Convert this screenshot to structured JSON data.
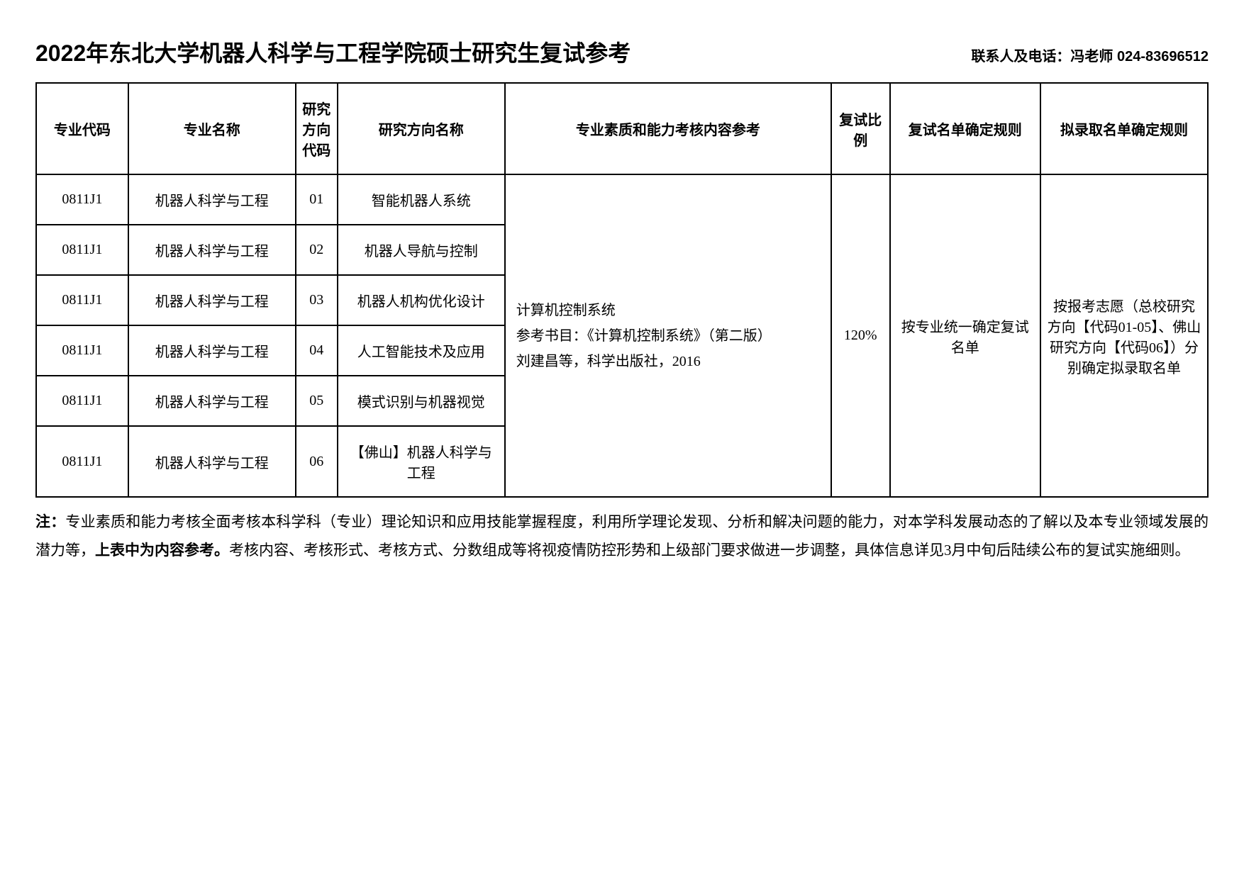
{
  "header": {
    "title": "2022年东北大学机器人科学与工程学院硕士研究生复试参考",
    "contact": "联系人及电话：冯老师  024-83696512"
  },
  "table": {
    "headers": {
      "code": "专业代码",
      "name": "专业名称",
      "dirnum": "研究方向代码",
      "dirname": "研究方向名称",
      "content": "专业素质和能力考核内容参考",
      "ratio": "复试比例",
      "rule1": "复试名单确定规则",
      "rule2": "拟录取名单确定规则"
    },
    "rows": [
      {
        "code": "0811J1",
        "name": "机器人科学与工程",
        "dirnum": "01",
        "dirname": "智能机器人系统"
      },
      {
        "code": "0811J1",
        "name": "机器人科学与工程",
        "dirnum": "02",
        "dirname": "机器人导航与控制"
      },
      {
        "code": "0811J1",
        "name": "机器人科学与工程",
        "dirnum": "03",
        "dirname": "机器人机构优化设计"
      },
      {
        "code": "0811J1",
        "name": "机器人科学与工程",
        "dirnum": "04",
        "dirname": "人工智能技术及应用"
      },
      {
        "code": "0811J1",
        "name": "机器人科学与工程",
        "dirnum": "05",
        "dirname": "模式识别与机器视觉"
      },
      {
        "code": "0811J1",
        "name": "机器人科学与工程",
        "dirnum": "06",
        "dirname": "【佛山】机器人科学与工程"
      }
    ],
    "merged": {
      "content_line1": "计算机控制系统",
      "content_line2": "参考书目：《计算机控制系统》（第二版）",
      "content_line3": "刘建昌等，科学出版社，2016",
      "ratio": "120%",
      "rule1": "按专业统一确定复试名单",
      "rule2": "按报考志愿（总校研究方向【代码01-05】、佛山研究方向【代码06】）分别确定拟录取名单"
    }
  },
  "note": {
    "prefix": "注：",
    "part1": "专业素质和能力考核全面考核本科学科（专业）理论知识和应用技能掌握程度，利用所学理论发现、分析和解决问题的能力，对本学科发展动态的了解以及本专业领域发展的潜力等，",
    "bold": "上表中为内容参考。",
    "part2": "考核内容、考核形式、考核方式、分数组成等将视疫情防控形势和上级部门要求做进一步调整，具体信息详见3月中旬后陆续公布的复试实施细则。"
  }
}
